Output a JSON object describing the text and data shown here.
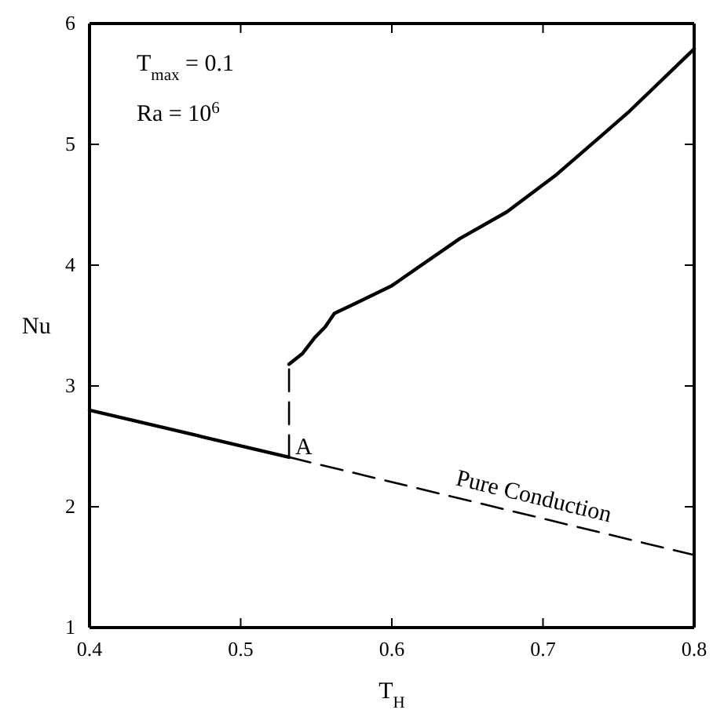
{
  "chart_data": {
    "type": "line",
    "xlabel": "T$_{H}$",
    "ylabel": "Nu",
    "xlim": [
      0.4,
      0.8
    ],
    "xticks": [
      0.4,
      0.5,
      0.6,
      0.7,
      0.8
    ],
    "ylim": [
      1,
      6
    ],
    "yticks": [
      1,
      2,
      3,
      4,
      5,
      6
    ],
    "grid": false,
    "marker": "none",
    "series": [
      {
        "color": "#000000",
        "line_style": "solid",
        "x": [
          0.4,
          0.532
        ],
        "values": [
          2.8,
          2.41
        ]
      },
      {
        "color": "#000000",
        "line_style": "dashed",
        "x": [
          0.532,
          0.532
        ],
        "values": [
          2.41,
          3.18
        ]
      },
      {
        "color": "#000000",
        "line_style": "solid",
        "x": [
          0.532,
          0.541,
          0.549,
          0.556,
          0.562,
          0.577,
          0.6,
          0.645,
          0.676,
          0.708,
          0.756,
          0.8
        ],
        "values": [
          3.18,
          3.27,
          3.4,
          3.49,
          3.6,
          3.69,
          3.83,
          4.22,
          4.44,
          4.74,
          5.26,
          5.79
        ]
      },
      {
        "color": "#000000",
        "line_style": "dashed",
        "x": [
          0.532,
          0.8
        ],
        "values": [
          2.41,
          1.6
        ]
      }
    ],
    "annotations": [
      "T$_{max}$ = 0.1",
      "Ra = 10$^{6}$",
      {
        "text": "A",
        "x": 0.532,
        "y": 2.41
      },
      "Pure Conduction"
    ]
  }
}
